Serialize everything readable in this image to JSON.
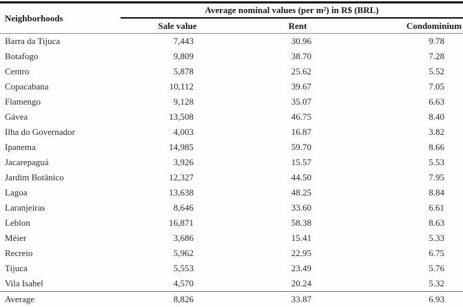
{
  "table": {
    "col1_header": "Neighborhoods",
    "span_header": "Average nominal values (per m²) in R$ (BRL)",
    "sub_headers": {
      "sale": "Sale value",
      "rent": "Rent",
      "condo": "Condominium"
    },
    "rows": [
      {
        "name": "Barra da Tijuca",
        "sale": "7,443",
        "rent": "30.96",
        "condo": "9.78"
      },
      {
        "name": "Botafogo",
        "sale": "9,809",
        "rent": "38.70",
        "condo": "7.28"
      },
      {
        "name": "Centro",
        "sale": "5,878",
        "rent": "25.62",
        "condo": "5.52"
      },
      {
        "name": "Copacabana",
        "sale": "10,112",
        "rent": "39.67",
        "condo": "7.05"
      },
      {
        "name": "Flamengo",
        "sale": "9,128",
        "rent": "35.07",
        "condo": "6.63"
      },
      {
        "name": "Gávea",
        "sale": "13,508",
        "rent": "46.75",
        "condo": "8.40"
      },
      {
        "name": "Ilha do Governador",
        "sale": "4,003",
        "rent": "16.87",
        "condo": "3.82"
      },
      {
        "name": "Ipanema",
        "sale": "14,985",
        "rent": "59.70",
        "condo": "8.66"
      },
      {
        "name": "Jacarepaguá",
        "sale": "3,926",
        "rent": "15.57",
        "condo": "5.53"
      },
      {
        "name": "Jardim Botânico",
        "sale": "12,327",
        "rent": "44.50",
        "condo": "7.95"
      },
      {
        "name": "Lagoa",
        "sale": "13,638",
        "rent": "48.25",
        "condo": "8.84"
      },
      {
        "name": "Laranjeiras",
        "sale": "8,646",
        "rent": "33.60",
        "condo": "6.61"
      },
      {
        "name": "Leblon",
        "sale": "16,871",
        "rent": "58.38",
        "condo": "8.63"
      },
      {
        "name": "Méier",
        "sale": "3,686",
        "rent": "15.41",
        "condo": "5.33"
      },
      {
        "name": "Recreio",
        "sale": "5,962",
        "rent": "22.95",
        "condo": "6.75"
      },
      {
        "name": "Tijuca",
        "sale": "5,553",
        "rent": "23.49",
        "condo": "5.76"
      },
      {
        "name": "Vila Isabel",
        "sale": "4,570",
        "rent": "20.24",
        "condo": "5.32"
      }
    ],
    "footer": {
      "name": "Average",
      "sale": "8,826",
      "rent": "33.87",
      "condo": "6.93"
    }
  }
}
